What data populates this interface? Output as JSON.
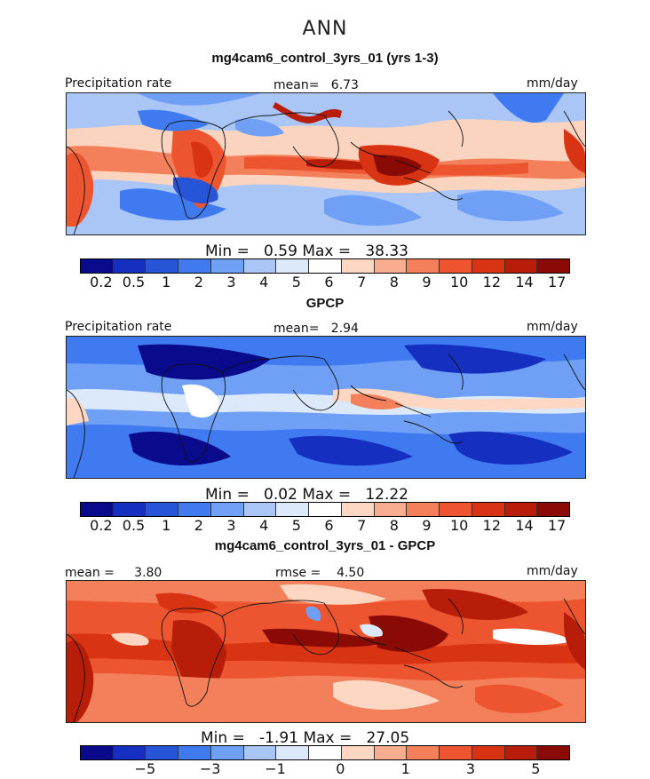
{
  "season": "ANN",
  "panels": [
    {
      "title": "mg4cam6_control_3yrs_01 (yrs 1-3)",
      "left_label": "Precipitation rate",
      "center_label": "mean=",
      "center_value": "6.73",
      "right_label": "mm/day",
      "min_label": "Min =",
      "min_value": "0.59",
      "max_label": "Max =",
      "max_value": "38.33",
      "colorbar": [
        "#0a0a8c",
        "#1530c0",
        "#2655d8",
        "#3f7af0",
        "#6fa0f5",
        "#a9c6f7",
        "#dbe9fb",
        "#ffffff",
        "#fdd7c2",
        "#f8ae8e",
        "#f3805a",
        "#ec5530",
        "#d83414",
        "#b81d0a",
        "#8a0a06"
      ],
      "ticks": [
        "0.2",
        "0.5",
        "1",
        "2",
        "3",
        "4",
        "5",
        "6",
        "7",
        "8",
        "9",
        "10",
        "12",
        "14",
        "17"
      ]
    },
    {
      "title": "GPCP",
      "left_label": "Precipitation rate",
      "center_label": "mean=",
      "center_value": "2.94",
      "right_label": "mm/day",
      "min_label": "Min =",
      "min_value": "0.02",
      "max_label": "Max =",
      "max_value": "12.22",
      "colorbar": [
        "#0a0a8c",
        "#1530c0",
        "#2655d8",
        "#3f7af0",
        "#6fa0f5",
        "#a9c6f7",
        "#dbe9fb",
        "#ffffff",
        "#fdd7c2",
        "#f8ae8e",
        "#f3805a",
        "#ec5530",
        "#d83414",
        "#b81d0a",
        "#8a0a06"
      ],
      "ticks": [
        "0.2",
        "0.5",
        "1",
        "2",
        "3",
        "4",
        "5",
        "6",
        "7",
        "8",
        "9",
        "10",
        "12",
        "14",
        "17"
      ]
    },
    {
      "title": "mg4cam6_control_3yrs_01 - GPCP",
      "left_label": "mean =",
      "left_value": "3.80",
      "center_label": "rmse =",
      "center_value": "4.50",
      "right_label": "mm/day",
      "min_label": "Min =",
      "min_value": "-1.91",
      "max_label": "Max =",
      "max_value": "27.05",
      "colorbar": [
        "#0a0a8c",
        "#1530c0",
        "#2655d8",
        "#3f7af0",
        "#6fa0f5",
        "#a9c6f7",
        "#dbe9fb",
        "#ffffff",
        "#fdd7c2",
        "#f8ae8e",
        "#f3805a",
        "#ec5530",
        "#d83414",
        "#b81d0a",
        "#8a0a06"
      ],
      "ticks": [
        "−5",
        "−3",
        "−1",
        "0",
        "1",
        "3",
        "5"
      ]
    }
  ]
}
